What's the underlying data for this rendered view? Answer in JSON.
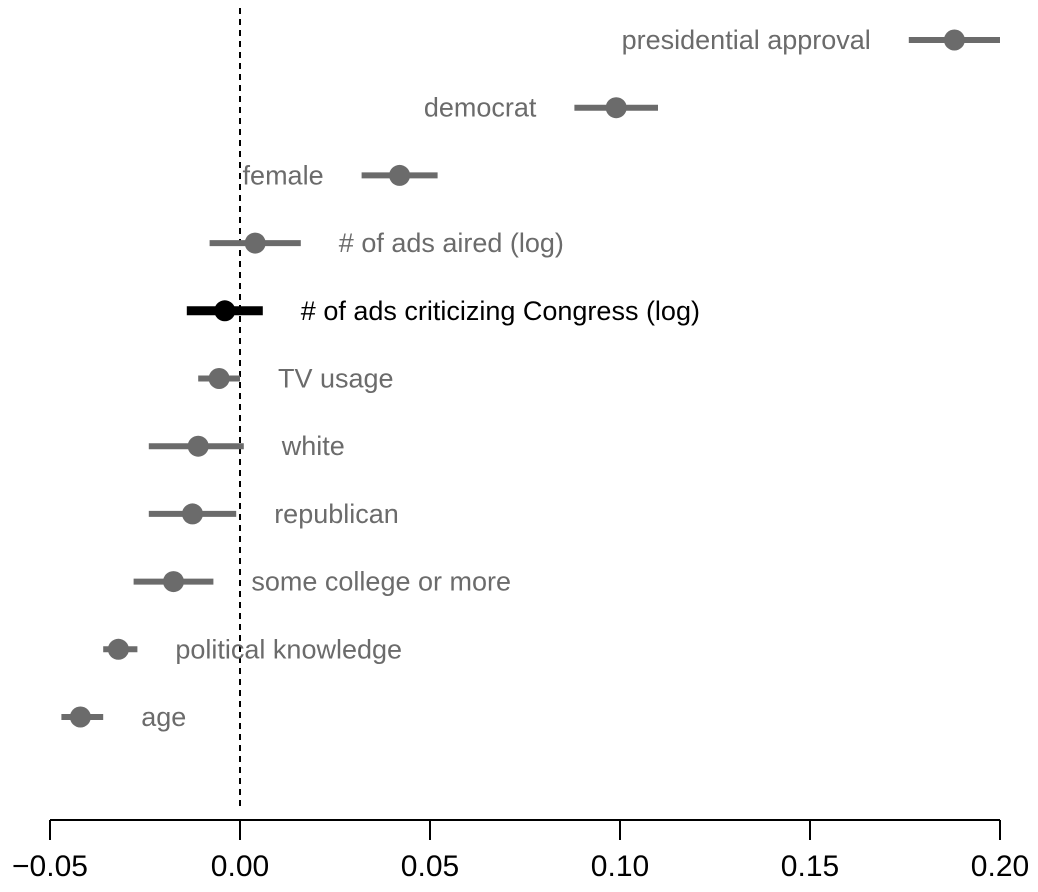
{
  "chart_data": {
    "type": "scatter",
    "subtype": "coefficient-plot",
    "title": "",
    "xlabel": "",
    "ylabel": "",
    "xlim": [
      -0.05,
      0.2
    ],
    "x_ticks": [
      -0.05,
      0.0,
      0.05,
      0.1,
      0.15,
      0.2
    ],
    "x_tick_labels": [
      "−0.05",
      "0.00",
      "0.05",
      "0.10",
      "0.15",
      "0.20"
    ],
    "reference_line": {
      "x": 0,
      "style": "dashed"
    },
    "grid": false,
    "colors": {
      "default": "#6b6b6b",
      "highlight": "#000000"
    },
    "rows": [
      {
        "label": "presidential approval",
        "estimate": 0.188,
        "ci": [
          0.176,
          0.2
        ],
        "label_side": "left",
        "highlight": false
      },
      {
        "label": "democrat",
        "estimate": 0.099,
        "ci": [
          0.088,
          0.11
        ],
        "label_side": "left",
        "highlight": false
      },
      {
        "label": "female",
        "estimate": 0.042,
        "ci": [
          0.032,
          0.052
        ],
        "label_side": "left",
        "highlight": false
      },
      {
        "label": "# of ads aired (log)",
        "estimate": 0.004,
        "ci": [
          -0.008,
          0.016
        ],
        "label_side": "right",
        "highlight": false
      },
      {
        "label": "# of ads criticizing Congress (log)",
        "estimate": -0.004,
        "ci": [
          -0.014,
          0.006
        ],
        "label_side": "right",
        "highlight": true
      },
      {
        "label": "TV usage",
        "estimate": -0.0055,
        "ci": [
          -0.011,
          0.0
        ],
        "label_side": "right",
        "highlight": false
      },
      {
        "label": "white",
        "estimate": -0.011,
        "ci": [
          -0.024,
          0.001
        ],
        "label_side": "right",
        "highlight": false
      },
      {
        "label": "republican",
        "estimate": -0.0125,
        "ci": [
          -0.024,
          -0.001
        ],
        "label_side": "right",
        "highlight": false
      },
      {
        "label": "some college or more",
        "estimate": -0.0175,
        "ci": [
          -0.028,
          -0.007
        ],
        "label_side": "right",
        "highlight": false
      },
      {
        "label": "political knowledge",
        "estimate": -0.032,
        "ci": [
          -0.036,
          -0.027
        ],
        "label_side": "right",
        "highlight": false
      },
      {
        "label": "age",
        "estimate": -0.042,
        "ci": [
          -0.047,
          -0.036
        ],
        "label_side": "right",
        "highlight": false
      }
    ]
  }
}
